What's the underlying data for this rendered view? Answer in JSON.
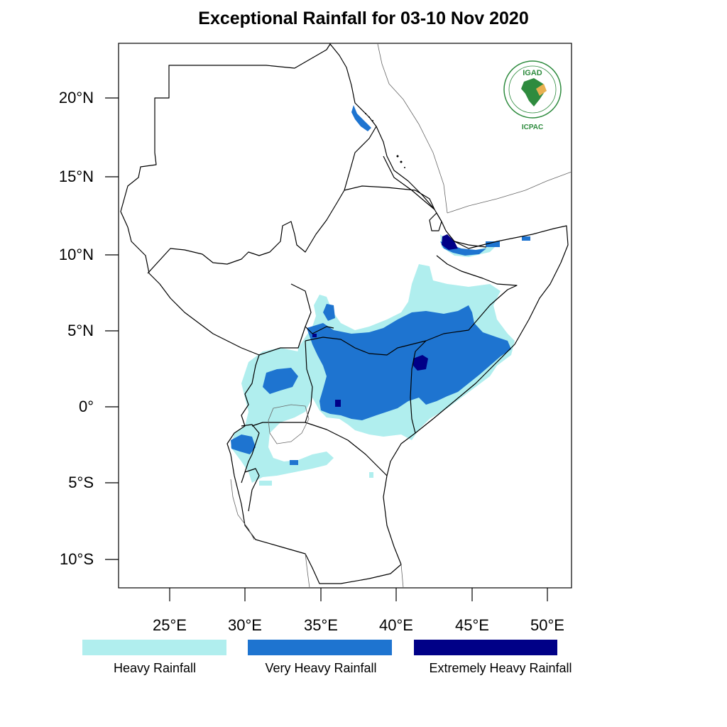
{
  "title": "Exceptional Rainfall for 03-10 Nov 2020",
  "map": {
    "lat_ticks": [
      "20°N",
      "15°N",
      "10°N",
      "5°N",
      "0°",
      "5°S",
      "10°S"
    ],
    "lon_ticks": [
      "25°E",
      "30°E",
      "35°E",
      "40°E",
      "45°E",
      "50°E"
    ],
    "lat_range": [
      -12,
      23.5
    ],
    "lon_range": [
      21.7,
      51.7
    ]
  },
  "logo": {
    "text": "IGAD",
    "subtext": "ICPAC",
    "icon": "igad-africa-logo-icon"
  },
  "legend": [
    {
      "label": "Heavy Rainfall",
      "color": "#b0eeee"
    },
    {
      "label": "Very Heavy Rainfall",
      "color": "#1e74d0"
    },
    {
      "label": "Extremely Heavy Rainfall",
      "color": "#000087"
    }
  ]
}
